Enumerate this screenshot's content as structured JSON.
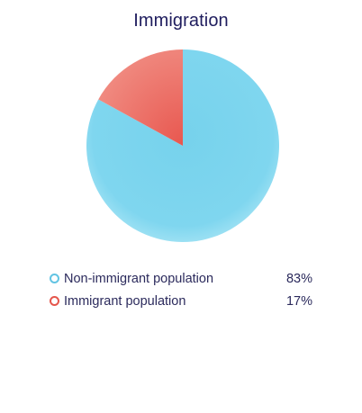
{
  "chart_data": {
    "type": "pie",
    "title": "Immigration",
    "categories": [
      "Non-immigrant population",
      "Immigrant population"
    ],
    "values": [
      83,
      17
    ],
    "value_labels": [
      "83%",
      "17%"
    ],
    "colors": [
      "#7dd5ee",
      "#ec6a5f"
    ],
    "legend_position": "bottom"
  }
}
